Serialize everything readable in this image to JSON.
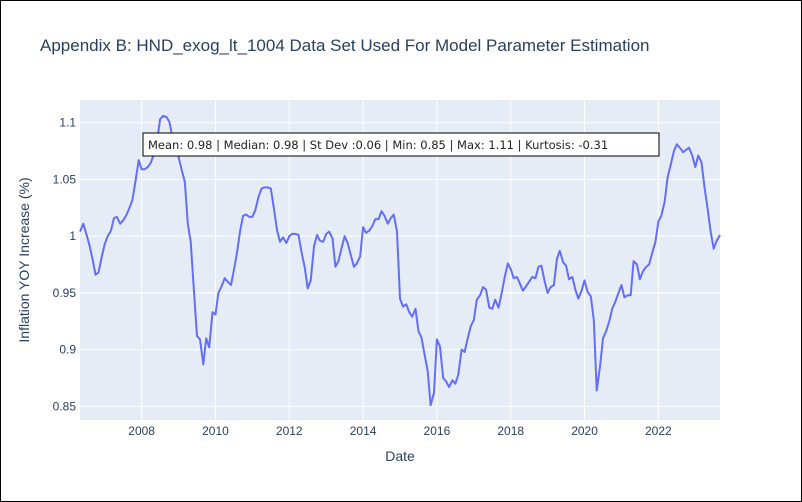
{
  "chart_data": {
    "type": "line",
    "title": "Appendix B: HND_exog_lt_1004 Data Set Used For Model Parameter Estimation",
    "xlabel": "Date",
    "ylabel": "Inflation YOY Increase (%)",
    "x_ticks": [
      "2008",
      "2010",
      "2012",
      "2014",
      "2016",
      "2018",
      "2020",
      "2022"
    ],
    "y_ticks": [
      "0.85",
      "0.9",
      "0.95",
      "1",
      "1.05",
      "1.1"
    ],
    "xlim": [
      2006.33,
      2023.67
    ],
    "ylim": [
      0.838,
      1.12
    ],
    "grid": true,
    "annotation": "Mean: 0.98 | Median: 0.98 | St Dev :0.06 | Min: 0.85 | Max: 1.11 | Kurtosis: -0.31",
    "series": [
      {
        "color": "#636efa",
        "points": [
          [
            2006.33,
            1.004
          ],
          [
            2006.42,
            1.011
          ],
          [
            2006.5,
            1.002
          ],
          [
            2006.58,
            0.993
          ],
          [
            2006.67,
            0.98
          ],
          [
            2006.75,
            0.966
          ],
          [
            2006.83,
            0.968
          ],
          [
            2006.92,
            0.982
          ],
          [
            2007.0,
            0.993
          ],
          [
            2007.08,
            1.0
          ],
          [
            2007.17,
            1.005
          ],
          [
            2007.25,
            1.016
          ],
          [
            2007.33,
            1.017
          ],
          [
            2007.42,
            1.011
          ],
          [
            2007.5,
            1.014
          ],
          [
            2007.58,
            1.018
          ],
          [
            2007.67,
            1.025
          ],
          [
            2007.75,
            1.032
          ],
          [
            2007.83,
            1.048
          ],
          [
            2007.92,
            1.067
          ],
          [
            2008.0,
            1.059
          ],
          [
            2008.08,
            1.059
          ],
          [
            2008.17,
            1.061
          ],
          [
            2008.25,
            1.065
          ],
          [
            2008.33,
            1.072
          ],
          [
            2008.42,
            1.084
          ],
          [
            2008.5,
            1.103
          ],
          [
            2008.58,
            1.106
          ],
          [
            2008.67,
            1.105
          ],
          [
            2008.75,
            1.101
          ],
          [
            2008.83,
            1.088
          ],
          [
            2008.92,
            1.079
          ],
          [
            2009.0,
            1.07
          ],
          [
            2009.08,
            1.059
          ],
          [
            2009.17,
            1.048
          ],
          [
            2009.25,
            1.011
          ],
          [
            2009.33,
            0.995
          ],
          [
            2009.42,
            0.951
          ],
          [
            2009.5,
            0.912
          ],
          [
            2009.58,
            0.909
          ],
          [
            2009.67,
            0.887
          ],
          [
            2009.75,
            0.91
          ],
          [
            2009.83,
            0.902
          ],
          [
            2009.92,
            0.933
          ],
          [
            2010.0,
            0.931
          ],
          [
            2010.08,
            0.95
          ],
          [
            2010.17,
            0.956
          ],
          [
            2010.25,
            0.963
          ],
          [
            2010.33,
            0.96
          ],
          [
            2010.42,
            0.957
          ],
          [
            2010.5,
            0.97
          ],
          [
            2010.58,
            0.985
          ],
          [
            2010.67,
            1.005
          ],
          [
            2010.75,
            1.018
          ],
          [
            2010.83,
            1.019
          ],
          [
            2010.92,
            1.017
          ],
          [
            2011.0,
            1.017
          ],
          [
            2011.08,
            1.023
          ],
          [
            2011.17,
            1.035
          ],
          [
            2011.25,
            1.042
          ],
          [
            2011.33,
            1.043
          ],
          [
            2011.42,
            1.043
          ],
          [
            2011.5,
            1.042
          ],
          [
            2011.58,
            1.025
          ],
          [
            2011.67,
            1.005
          ],
          [
            2011.75,
            0.995
          ],
          [
            2011.83,
            0.999
          ],
          [
            2011.92,
            0.994
          ],
          [
            2012.0,
            1.0
          ],
          [
            2012.08,
            1.002
          ],
          [
            2012.17,
            1.002
          ],
          [
            2012.25,
            1.001
          ],
          [
            2012.33,
            0.986
          ],
          [
            2012.42,
            0.972
          ],
          [
            2012.5,
            0.954
          ],
          [
            2012.58,
            0.961
          ],
          [
            2012.67,
            0.991
          ],
          [
            2012.75,
            1.001
          ],
          [
            2012.83,
            0.996
          ],
          [
            2012.92,
            0.995
          ],
          [
            2013.0,
            1.002
          ],
          [
            2013.08,
            1.004
          ],
          [
            2013.17,
            0.998
          ],
          [
            2013.25,
            0.973
          ],
          [
            2013.33,
            0.978
          ],
          [
            2013.42,
            0.99
          ],
          [
            2013.5,
            1.0
          ],
          [
            2013.58,
            0.994
          ],
          [
            2013.67,
            0.983
          ],
          [
            2013.75,
            0.973
          ],
          [
            2013.83,
            0.976
          ],
          [
            2013.92,
            0.982
          ],
          [
            2014.0,
            1.008
          ],
          [
            2014.08,
            1.003
          ],
          [
            2014.17,
            1.005
          ],
          [
            2014.25,
            1.009
          ],
          [
            2014.33,
            1.015
          ],
          [
            2014.42,
            1.015
          ],
          [
            2014.5,
            1.022
          ],
          [
            2014.58,
            1.018
          ],
          [
            2014.67,
            1.011
          ],
          [
            2014.75,
            1.016
          ],
          [
            2014.83,
            1.019
          ],
          [
            2014.92,
            1.004
          ],
          [
            2015.0,
            0.945
          ],
          [
            2015.08,
            0.938
          ],
          [
            2015.17,
            0.94
          ],
          [
            2015.25,
            0.933
          ],
          [
            2015.33,
            0.929
          ],
          [
            2015.42,
            0.936
          ],
          [
            2015.5,
            0.916
          ],
          [
            2015.58,
            0.911
          ],
          [
            2015.67,
            0.895
          ],
          [
            2015.75,
            0.881
          ],
          [
            2015.83,
            0.851
          ],
          [
            2015.92,
            0.862
          ],
          [
            2016.0,
            0.909
          ],
          [
            2016.08,
            0.903
          ],
          [
            2016.17,
            0.875
          ],
          [
            2016.25,
            0.872
          ],
          [
            2016.33,
            0.867
          ],
          [
            2016.42,
            0.873
          ],
          [
            2016.5,
            0.87
          ],
          [
            2016.58,
            0.878
          ],
          [
            2016.67,
            0.9
          ],
          [
            2016.75,
            0.898
          ],
          [
            2016.83,
            0.909
          ],
          [
            2016.92,
            0.921
          ],
          [
            2017.0,
            0.926
          ],
          [
            2017.08,
            0.944
          ],
          [
            2017.17,
            0.948
          ],
          [
            2017.25,
            0.955
          ],
          [
            2017.33,
            0.953
          ],
          [
            2017.42,
            0.937
          ],
          [
            2017.5,
            0.936
          ],
          [
            2017.58,
            0.944
          ],
          [
            2017.67,
            0.937
          ],
          [
            2017.75,
            0.949
          ],
          [
            2017.83,
            0.963
          ],
          [
            2017.92,
            0.976
          ],
          [
            2018.0,
            0.971
          ],
          [
            2018.08,
            0.963
          ],
          [
            2018.17,
            0.964
          ],
          [
            2018.25,
            0.958
          ],
          [
            2018.33,
            0.952
          ],
          [
            2018.42,
            0.956
          ],
          [
            2018.5,
            0.96
          ],
          [
            2018.58,
            0.964
          ],
          [
            2018.67,
            0.963
          ],
          [
            2018.75,
            0.973
          ],
          [
            2018.83,
            0.974
          ],
          [
            2018.92,
            0.96
          ],
          [
            2019.0,
            0.95
          ],
          [
            2019.08,
            0.955
          ],
          [
            2019.17,
            0.957
          ],
          [
            2019.25,
            0.98
          ],
          [
            2019.33,
            0.987
          ],
          [
            2019.42,
            0.977
          ],
          [
            2019.5,
            0.974
          ],
          [
            2019.58,
            0.962
          ],
          [
            2019.67,
            0.964
          ],
          [
            2019.75,
            0.953
          ],
          [
            2019.83,
            0.945
          ],
          [
            2019.92,
            0.952
          ],
          [
            2020.0,
            0.961
          ],
          [
            2020.08,
            0.951
          ],
          [
            2020.17,
            0.947
          ],
          [
            2020.25,
            0.926
          ],
          [
            2020.33,
            0.864
          ],
          [
            2020.42,
            0.885
          ],
          [
            2020.5,
            0.91
          ],
          [
            2020.58,
            0.916
          ],
          [
            2020.67,
            0.925
          ],
          [
            2020.75,
            0.936
          ],
          [
            2020.83,
            0.942
          ],
          [
            2020.92,
            0.95
          ],
          [
            2021.0,
            0.957
          ],
          [
            2021.08,
            0.946
          ],
          [
            2021.17,
            0.948
          ],
          [
            2021.25,
            0.948
          ],
          [
            2021.33,
            0.978
          ],
          [
            2021.42,
            0.975
          ],
          [
            2021.5,
            0.962
          ],
          [
            2021.58,
            0.969
          ],
          [
            2021.67,
            0.973
          ],
          [
            2021.75,
            0.975
          ],
          [
            2021.83,
            0.985
          ],
          [
            2021.92,
            0.995
          ],
          [
            2022.0,
            1.013
          ],
          [
            2022.08,
            1.018
          ],
          [
            2022.17,
            1.03
          ],
          [
            2022.25,
            1.052
          ],
          [
            2022.33,
            1.062
          ],
          [
            2022.42,
            1.075
          ],
          [
            2022.5,
            1.081
          ],
          [
            2022.58,
            1.078
          ],
          [
            2022.67,
            1.074
          ],
          [
            2022.75,
            1.076
          ],
          [
            2022.83,
            1.078
          ],
          [
            2022.92,
            1.071
          ],
          [
            2023.0,
            1.061
          ],
          [
            2023.08,
            1.071
          ],
          [
            2023.17,
            1.065
          ],
          [
            2023.25,
            1.043
          ],
          [
            2023.33,
            1.025
          ],
          [
            2023.42,
            1.003
          ],
          [
            2023.5,
            0.989
          ],
          [
            2023.58,
            0.996
          ],
          [
            2023.67,
            1.001
          ]
        ]
      }
    ]
  }
}
